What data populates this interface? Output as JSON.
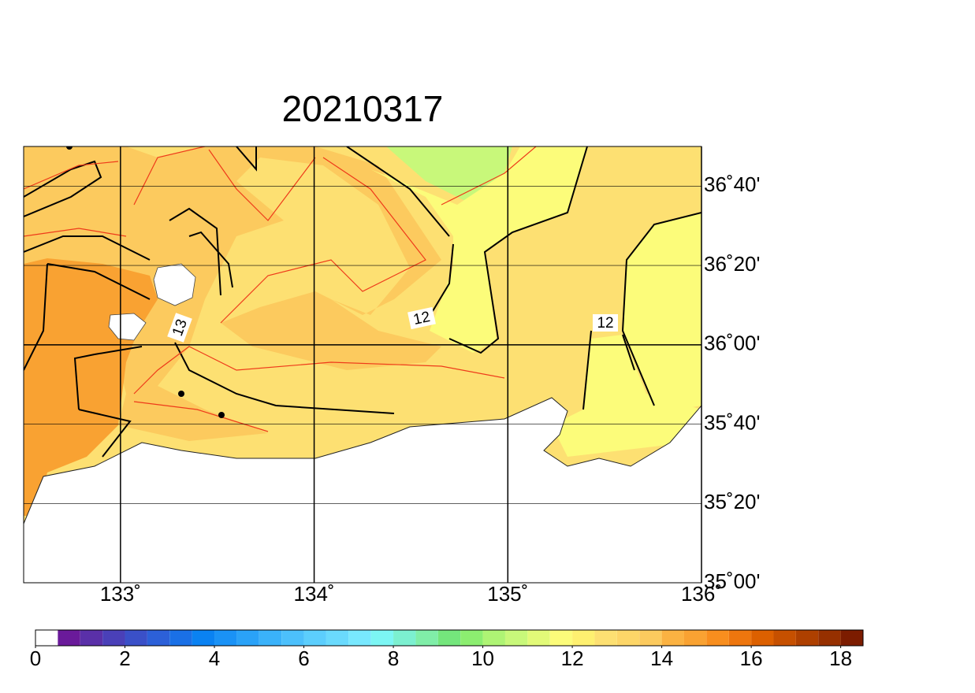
{
  "title": "20210317",
  "map": {
    "xlim": [
      132.5,
      136
    ],
    "ylim": [
      35,
      36.8333
    ],
    "xticks": [
      {
        "value": 133,
        "label": "133˚"
      },
      {
        "value": 134,
        "label": "134˚"
      },
      {
        "value": 135,
        "label": "135˚"
      },
      {
        "value": 136,
        "label": "136˚"
      }
    ],
    "yticks": [
      {
        "value": 35,
        "label": "35˚00'"
      },
      {
        "value": 35.3333,
        "label": "35˚20'"
      },
      {
        "value": 35.6667,
        "label": "35˚40'"
      },
      {
        "value": 36,
        "label": "36˚00'"
      },
      {
        "value": 36.3333,
        "label": "36˚20'"
      },
      {
        "value": 36.6667,
        "label": "36˚40'"
      }
    ],
    "contour_labels": [
      13,
      12,
      12
    ]
  },
  "colorbar": {
    "lim": [
      0,
      18.5
    ],
    "ticks": [
      0,
      2,
      4,
      6,
      8,
      10,
      12,
      14,
      16,
      18
    ],
    "colors": [
      "#ffffff",
      "#6a1a9a",
      "#5a30a8",
      "#4a40b8",
      "#3a50c8",
      "#2c60d8",
      "#1a70e6",
      "#0a82f2",
      "#1a92f6",
      "#2aa2f8",
      "#3ab2fa",
      "#4cc0fc",
      "#5ccefd",
      "#6adafd",
      "#78e8fe",
      "#7cf6f4",
      "#7cf0d0",
      "#80eea8",
      "#74e67c",
      "#8cee70",
      "#aef474",
      "#c8f87a",
      "#e2fa78",
      "#fcfc7a",
      "#fef070",
      "#fde072",
      "#fdd668",
      "#fcca5e",
      "#fbb242",
      "#f9a232",
      "#f88e1e",
      "#ee760e",
      "#dc6000",
      "#c65000",
      "#ae4000",
      "#963000",
      "#7c1c00"
    ]
  }
}
